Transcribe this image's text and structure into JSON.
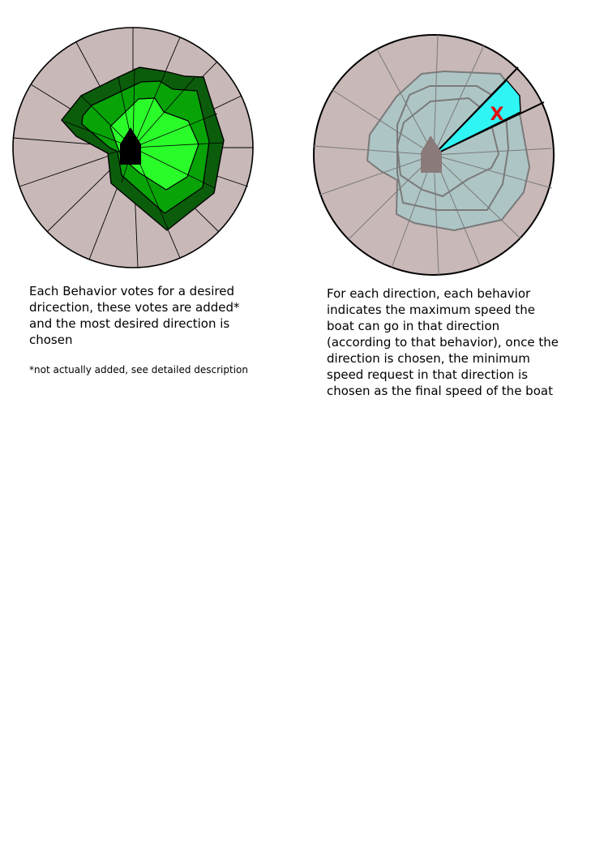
{
  "left_panel": {
    "caption": "Each Behavior votes for a desired\ndricection, these votes are added*\nand the most desired direction is\nchosen",
    "footnote": "*not actually added, see detailed description"
  },
  "right_panel": {
    "caption": "For each direction, each behavior\nindicates the maximum speed the\nboat can go in that direction\n(according to that behavior), once the\ndirection is chosen, the minimum\nspeed request in that direction is\nchosen as the final speed of the boat",
    "chosen_marker": "X"
  },
  "colors": {
    "disk": "#c9b8b8",
    "vote_outer": "#0b5d0b",
    "vote_mid": "#07a307",
    "vote_inner": "#2afc2a",
    "boat_left": "#000000",
    "boat_right": "#8a7a7a",
    "speed_fill": "#a8c8c8",
    "chosen_sector": "#2ff5f5",
    "marker": "#e01010"
  }
}
